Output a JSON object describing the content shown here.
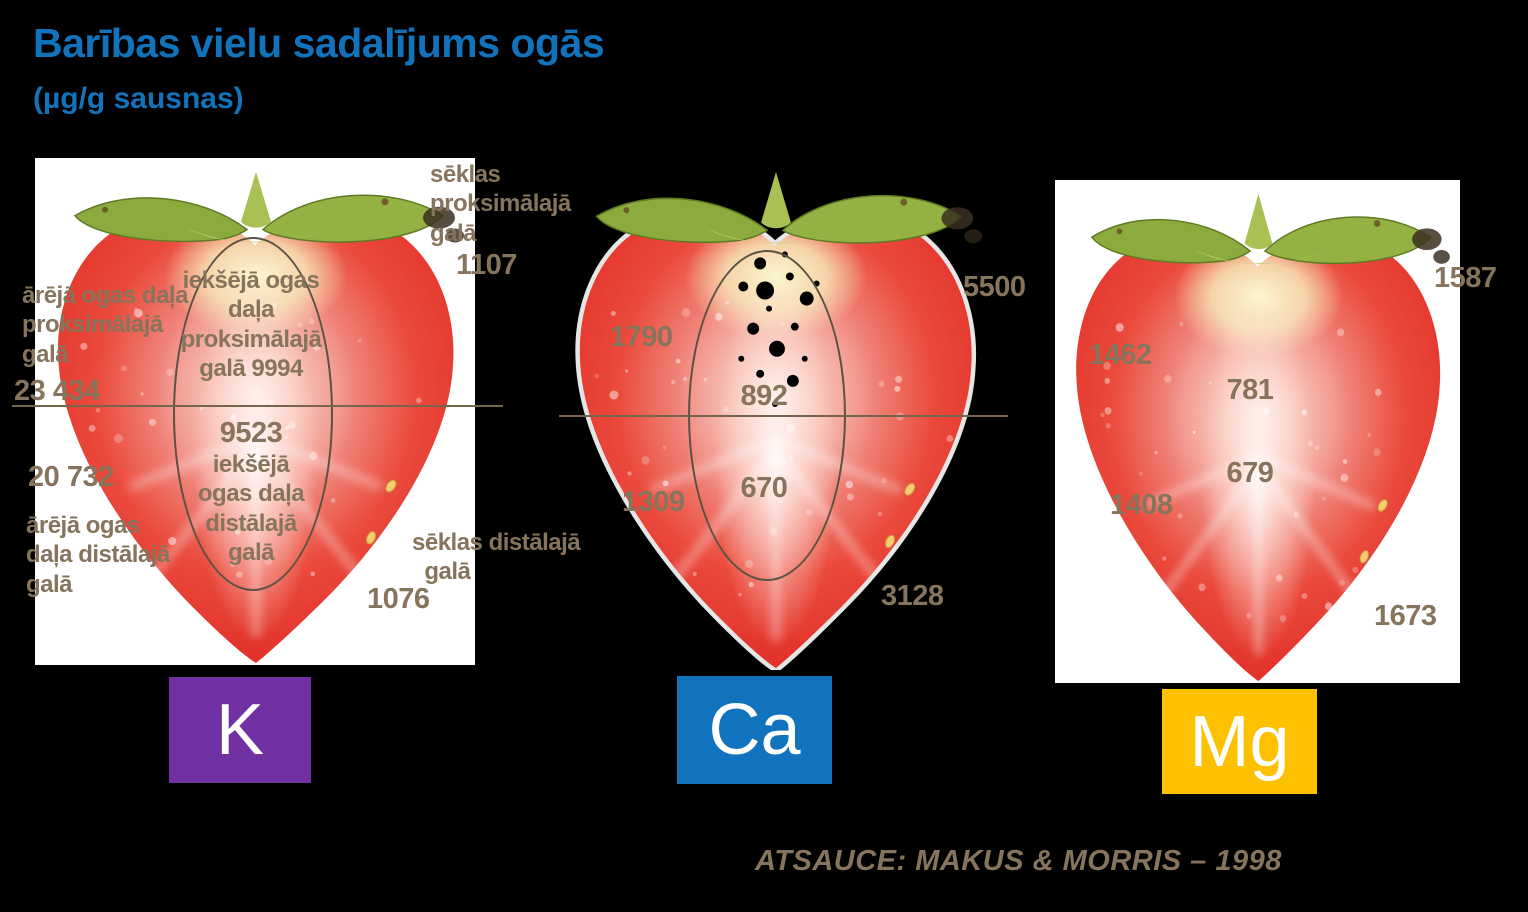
{
  "slide": {
    "title": "Barības vielu sadalījums ogās",
    "subtitle": "(µg/g sausnas)",
    "reference": "ATSAUCE: MAKUS & MORRIS – 1998",
    "background_color": "#000000",
    "title_color": "#1173bb",
    "annotation_color": "#87745c"
  },
  "panels": [
    {
      "id": "k",
      "element_symbol": "K",
      "box_color": "#7131a3",
      "labels": {
        "seeds_proximal": "sēklas\nproksimālajā\ngalā",
        "outer_proximal": "ārējā ogas daļa\nproksimālajā\ngalā",
        "inner_proximal": "iekšējā ogas\ndaļa\nproksimālajā\ngalā 9994",
        "inner_distal": "iekšējā\nogas daļa\ndistālajā\ngalā",
        "outer_distal": "ārējā ogas\ndaļa distālajā\ngalā",
        "seeds_distal": "sēklas distālajā\n  galā"
      },
      "values": {
        "seeds_proximal": "1107",
        "outer_proximal": "23 434",
        "inner_distal": "9523",
        "outer_distal": "20 732",
        "seeds_distal": "1076"
      }
    },
    {
      "id": "ca",
      "element_symbol": "Ca",
      "box_color": "#1172bd",
      "values": {
        "seeds_proximal": "5500",
        "outer_proximal": "1790",
        "inner_proximal": "892",
        "inner_distal": "670",
        "outer_distal": "1309",
        "seeds_distal": "3128"
      }
    },
    {
      "id": "mg",
      "element_symbol": "Mg",
      "box_color": "#fec100",
      "values": {
        "seeds_proximal": "1587",
        "outer_proximal": "1462",
        "inner_proximal": "781",
        "inner_distal": "679",
        "outer_distal": "1408",
        "seeds_distal": "1673"
      }
    }
  ],
  "chart_data": {
    "type": "table",
    "title": "Barības vielu sadalījums ogās (µg/g sausnas)",
    "unit": "µg/g sausnas",
    "regions": [
      "sēklas proksimālajā galā",
      "ārējā ogas daļa proksimālajā galā",
      "iekšējā ogas daļa proksimālajā galā",
      "iekšējā ogas daļa distālajā galā",
      "ārējā ogas daļa distālajā galā",
      "sēklas distālajā galā"
    ],
    "series": [
      {
        "name": "K",
        "values": [
          1107,
          23434,
          9994,
          9523,
          20732,
          1076
        ]
      },
      {
        "name": "Ca",
        "values": [
          5500,
          1790,
          892,
          670,
          1309,
          3128
        ]
      },
      {
        "name": "Mg",
        "values": [
          1587,
          1462,
          781,
          679,
          1408,
          1673
        ]
      }
    ],
    "source": "MAKUS & MORRIS – 1998"
  }
}
